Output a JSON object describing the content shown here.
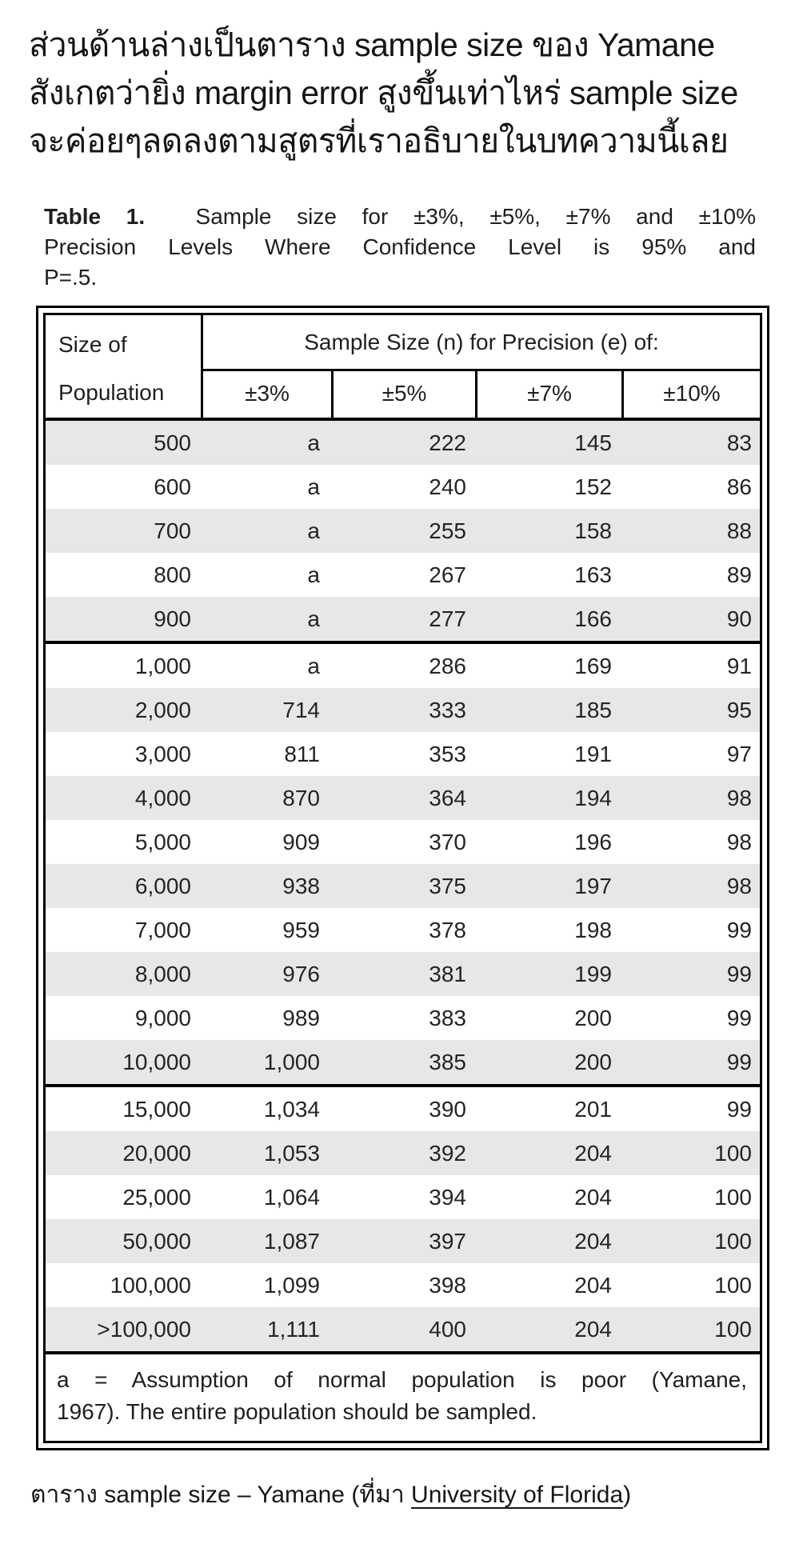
{
  "intro": {
    "lines": [
      "ส่วนด้านล่างเป็นตาราง sample size ของ Yamane",
      "สังเกตว่ายิ่ง margin error สูงขึ้นเท่าไหร่ sample size",
      "จะค่อยๆลดลงตามสูตรที่เราอธิบายในบทความนี้เลย"
    ]
  },
  "table": {
    "title": {
      "bold": "Table 1.",
      "line1_rest": "Sample size for ±3%, ±5%, ±7% and ±10%",
      "line2": "Precision Levels Where Confidence Level is 95% and",
      "line3": "P=.5."
    },
    "header": {
      "size_of": "Size of",
      "population": "Population",
      "span_label": "Sample Size (n) for Precision (e) of:",
      "precision_labels": [
        "±3%",
        "±5%",
        "±7%",
        "±10%"
      ]
    },
    "columns": [
      "Size of Population",
      "±3%",
      "±5%",
      "±7%",
      "±10%"
    ],
    "blocks": [
      [
        [
          "500",
          "a",
          "222",
          "145",
          "83"
        ],
        [
          "600",
          "a",
          "240",
          "152",
          "86"
        ],
        [
          "700",
          "a",
          "255",
          "158",
          "88"
        ],
        [
          "800",
          "a",
          "267",
          "163",
          "89"
        ],
        [
          "900",
          "a",
          "277",
          "166",
          "90"
        ]
      ],
      [
        [
          "1,000",
          "a",
          "286",
          "169",
          "91"
        ],
        [
          "2,000",
          "714",
          "333",
          "185",
          "95"
        ],
        [
          "3,000",
          "811",
          "353",
          "191",
          "97"
        ],
        [
          "4,000",
          "870",
          "364",
          "194",
          "98"
        ],
        [
          "5,000",
          "909",
          "370",
          "196",
          "98"
        ],
        [
          "6,000",
          "938",
          "375",
          "197",
          "98"
        ],
        [
          "7,000",
          "959",
          "378",
          "198",
          "99"
        ],
        [
          "8,000",
          "976",
          "381",
          "199",
          "99"
        ],
        [
          "9,000",
          "989",
          "383",
          "200",
          "99"
        ],
        [
          "10,000",
          "1,000",
          "385",
          "200",
          "99"
        ]
      ],
      [
        [
          "15,000",
          "1,034",
          "390",
          "201",
          "99"
        ],
        [
          "20,000",
          "1,053",
          "392",
          "204",
          "100"
        ],
        [
          "25,000",
          "1,064",
          "394",
          "204",
          "100"
        ],
        [
          "50,000",
          "1,087",
          "397",
          "204",
          "100"
        ],
        [
          "100,000",
          "1,099",
          "398",
          "204",
          "100"
        ],
        [
          ">100,000",
          "1,111",
          "400",
          "204",
          "100"
        ]
      ]
    ],
    "footnote": {
      "line1": "a = Assumption of normal population is poor (Yamane,",
      "line2": "1967).  The entire population should be sampled."
    },
    "colors": {
      "zebra": "#e7e7e7",
      "border": "#000000"
    }
  },
  "caption": {
    "prefix": "ตาราง sample size – Yamane (ที่มา ",
    "link_text": "University of Florida",
    "suffix": ")"
  }
}
